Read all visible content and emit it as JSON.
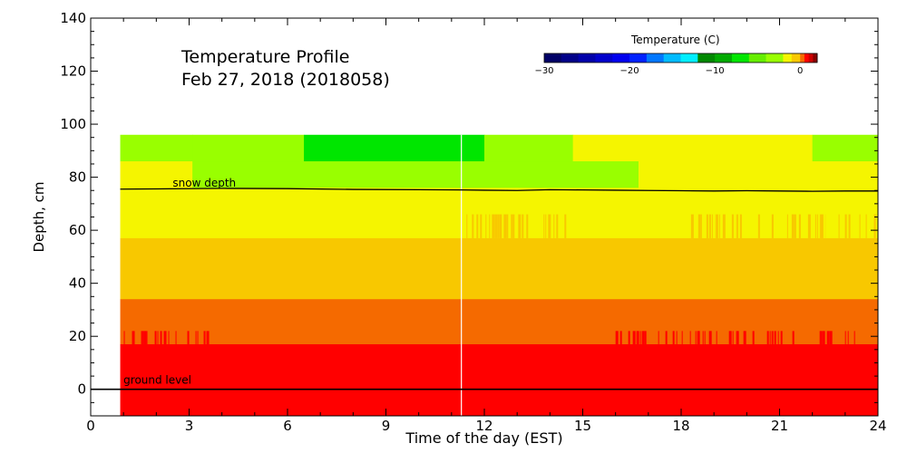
{
  "chart_data": {
    "type": "heatmap",
    "title": "Temperature Profile",
    "subtitle": "Feb 27, 2018 (2018058)",
    "xlabel": "Time of the day (EST)",
    "ylabel": "Depth, cm",
    "xlim": [
      0,
      24
    ],
    "ylim": [
      -10,
      140
    ],
    "xticks": [
      0,
      3,
      6,
      9,
      12,
      15,
      18,
      21,
      24
    ],
    "yticks": [
      0,
      20,
      40,
      60,
      80,
      100,
      120,
      140
    ],
    "colorbar": {
      "title": "Temperature (C)",
      "range": [
        -30,
        2
      ],
      "ticks": [
        -30,
        -20,
        -10,
        0
      ],
      "levels": [
        {
          "from": -30,
          "to": -28,
          "color": "#000066"
        },
        {
          "from": -28,
          "to": -26,
          "color": "#000088"
        },
        {
          "from": -26,
          "to": -24,
          "color": "#0000aa"
        },
        {
          "from": -24,
          "to": -22,
          "color": "#0000cc"
        },
        {
          "from": -22,
          "to": -20,
          "color": "#0000ee"
        },
        {
          "from": -20,
          "to": -18,
          "color": "#0022ff"
        },
        {
          "from": -18,
          "to": -16,
          "color": "#0077ff"
        },
        {
          "from": -16,
          "to": -14,
          "color": "#00bbff"
        },
        {
          "from": -14,
          "to": -12,
          "color": "#00eeff"
        },
        {
          "from": -12,
          "to": -10,
          "color": "#008800"
        },
        {
          "from": -10,
          "to": -8,
          "color": "#00aa00"
        },
        {
          "from": -8,
          "to": -6,
          "color": "#00e600"
        },
        {
          "from": -6,
          "to": -4,
          "color": "#66ee00"
        },
        {
          "from": -4,
          "to": -2,
          "color": "#99ff00"
        },
        {
          "from": -2,
          "to": -1,
          "color": "#f5f500"
        },
        {
          "from": -1,
          "to": 0,
          "color": "#f8c800"
        },
        {
          "from": 0,
          "to": 0.5,
          "color": "#f56a00"
        },
        {
          "from": 0.5,
          "to": 1,
          "color": "#ff0000"
        },
        {
          "from": 1,
          "to": 1.5,
          "color": "#cc0000"
        },
        {
          "from": 1.5,
          "to": 2,
          "color": "#880000"
        }
      ]
    },
    "cells": [
      {
        "t0": 0.9,
        "t1": 3.1,
        "d0": 86,
        "d1": 96,
        "color": "#99ff00"
      },
      {
        "t0": 3.1,
        "t1": 6.5,
        "d0": 86,
        "d1": 96,
        "color": "#99ff00"
      },
      {
        "t0": 6.5,
        "t1": 12.0,
        "d0": 86,
        "d1": 96,
        "color": "#00e600"
      },
      {
        "t0": 12.0,
        "t1": 14.7,
        "d0": 86,
        "d1": 96,
        "color": "#99ff00"
      },
      {
        "t0": 14.7,
        "t1": 22.0,
        "d0": 86,
        "d1": 96,
        "color": "#f5f500"
      },
      {
        "t0": 22.0,
        "t1": 24.0,
        "d0": 86,
        "d1": 96,
        "color": "#99ff00"
      },
      {
        "t0": 0.9,
        "t1": 3.1,
        "d0": 76,
        "d1": 86,
        "color": "#f5f500"
      },
      {
        "t0": 3.1,
        "t1": 16.7,
        "d0": 76,
        "d1": 86,
        "color": "#99ff00"
      },
      {
        "t0": 16.7,
        "t1": 24.0,
        "d0": 76,
        "d1": 86,
        "color": "#f5f500"
      },
      {
        "t0": 0.9,
        "t1": 24.0,
        "d0": 57,
        "d1": 76,
        "color": "#f5f500"
      },
      {
        "t0": 0.9,
        "t1": 24.0,
        "d0": 34,
        "d1": 57,
        "color": "#f8c800"
      },
      {
        "t0": 0.9,
        "t1": 24.0,
        "d0": 17,
        "d1": 34,
        "color": "#f56a00"
      },
      {
        "t0": 0.9,
        "t1": 24.0,
        "d0": -10,
        "d1": 17,
        "color": "#ff0000"
      }
    ],
    "flicker_bands": [
      {
        "d0": 57,
        "d1": 66,
        "color": "#f8c800",
        "segments": [
          [
            11.4,
            14.5
          ],
          [
            18.3,
            22.4
          ],
          [
            22.8,
            24.0
          ]
        ]
      },
      {
        "d0": 17,
        "d1": 22,
        "color": "#ff0000",
        "segments": [
          [
            0.9,
            3.8
          ],
          [
            16.0,
            23.3
          ]
        ]
      }
    ],
    "snow_depth": {
      "label": "snow depth",
      "t": [
        0.9,
        2,
        4,
        6,
        8,
        10,
        11.3,
        12,
        13,
        14,
        15,
        16,
        17,
        18,
        19,
        20,
        21,
        22,
        23,
        24
      ],
      "depth": [
        75.5,
        75.6,
        75.8,
        75.7,
        75.4,
        75.3,
        75.2,
        75.1,
        75.0,
        75.3,
        75.2,
        75.1,
        75.0,
        74.9,
        74.8,
        74.9,
        74.8,
        74.7,
        74.8,
        74.8
      ]
    },
    "ground_level": {
      "label": "ground level",
      "depth": 0
    },
    "vertical_marker": {
      "t": 11.3
    }
  }
}
